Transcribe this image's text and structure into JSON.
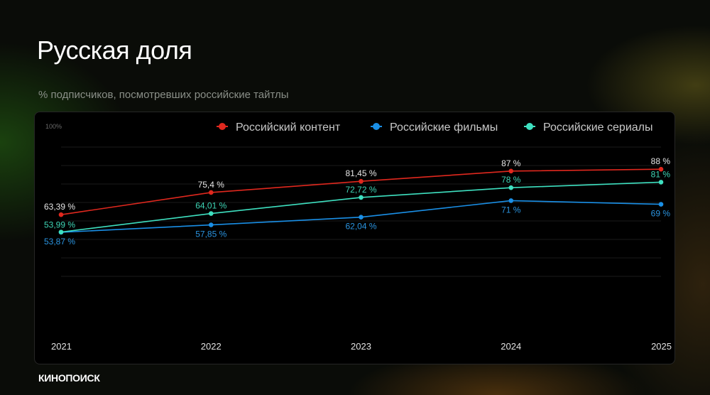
{
  "title": "Русская доля",
  "subtitle": "% подписчиков, посмотревших российские тайтлы",
  "logo": "КИНОПОИСК",
  "chart_data": {
    "type": "line",
    "ytick_label": "100%",
    "ylim": [
      0,
      100
    ],
    "categories": [
      "2021",
      "2022",
      "2023",
      "2024",
      "2025"
    ],
    "legend_position": "top-right",
    "series": [
      {
        "name": "Российский контент",
        "color": "#e0281e",
        "values": [
          63.39,
          75.4,
          81.45,
          87,
          88
        ],
        "labels": [
          "63,39 %",
          "75,4 %",
          "81,45 %",
          "87 %",
          "88 %"
        ],
        "label_color": "#e6e6e6",
        "label_pos": "above"
      },
      {
        "name": "Российские фильмы",
        "color": "#1a8fe6",
        "values": [
          53.87,
          57.85,
          62.04,
          71,
          69
        ],
        "labels": [
          "53,87 %",
          "57,85 %",
          "62,04 %",
          "71 %",
          "69 %"
        ],
        "label_color": "#2a94e0",
        "label_pos": "below"
      },
      {
        "name": "Российские сериалы",
        "color": "#3ee0c0",
        "values": [
          53.99,
          64.01,
          72.72,
          78,
          81
        ],
        "labels": [
          "53,99 %",
          "64,01 %",
          "72,72 %",
          "78 %",
          "81 %"
        ],
        "label_color": "#3ed6b6",
        "label_pos": "above"
      }
    ]
  }
}
